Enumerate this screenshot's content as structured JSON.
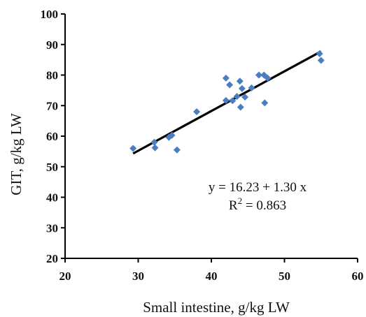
{
  "chart_data": {
    "type": "scatter",
    "title": "",
    "xlabel": "Small intestine, g/kg LW",
    "ylabel": "GIT, g/kg LW",
    "xlim": [
      20,
      60
    ],
    "ylim": [
      20,
      100
    ],
    "xticks": [
      20,
      30,
      40,
      50,
      60
    ],
    "yticks": [
      20,
      30,
      40,
      50,
      60,
      70,
      80,
      90,
      100
    ],
    "grid": false,
    "legend": "none",
    "marker_color": "#4a7ec0",
    "line_color": "#000000",
    "points": [
      {
        "x": 29.3,
        "y": 56.0
      },
      {
        "x": 32.2,
        "y": 58.0
      },
      {
        "x": 32.3,
        "y": 56.2
      },
      {
        "x": 34.2,
        "y": 59.6
      },
      {
        "x": 34.6,
        "y": 60.3
      },
      {
        "x": 35.3,
        "y": 55.5
      },
      {
        "x": 38.0,
        "y": 68.0
      },
      {
        "x": 42.0,
        "y": 71.7
      },
      {
        "x": 42.0,
        "y": 79.0
      },
      {
        "x": 42.5,
        "y": 76.8
      },
      {
        "x": 42.9,
        "y": 71.6
      },
      {
        "x": 43.5,
        "y": 73.0
      },
      {
        "x": 43.9,
        "y": 78.0
      },
      {
        "x": 44.0,
        "y": 69.5
      },
      {
        "x": 44.2,
        "y": 75.6
      },
      {
        "x": 44.6,
        "y": 72.8
      },
      {
        "x": 45.5,
        "y": 75.8
      },
      {
        "x": 46.5,
        "y": 80.0
      },
      {
        "x": 47.2,
        "y": 80.0
      },
      {
        "x": 47.3,
        "y": 70.9
      },
      {
        "x": 47.7,
        "y": 79.0
      },
      {
        "x": 54.8,
        "y": 87.0
      },
      {
        "x": 55.0,
        "y": 84.8
      }
    ],
    "trendline": {
      "intercept": 16.23,
      "slope": 1.3,
      "x_range": [
        29.3,
        55.0
      ]
    },
    "annotations": {
      "equation": "y = 16.23 + 1.30 x",
      "r2_prefix": "R",
      "r2_sup": "2",
      "r2_suffix": " = 0.863"
    }
  }
}
